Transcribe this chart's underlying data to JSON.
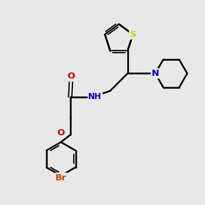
{
  "background_color": "#e8e8e8",
  "bond_color": "#000000",
  "atom_colors": {
    "S": "#cccc00",
    "N": "#0000cc",
    "O": "#cc0000",
    "Br": "#cc4400",
    "NH": "#008800",
    "C": "#000000"
  },
  "figsize": [
    3.0,
    3.0
  ],
  "dpi": 100,
  "xlim": [
    0,
    10
  ],
  "ylim": [
    0,
    10
  ]
}
